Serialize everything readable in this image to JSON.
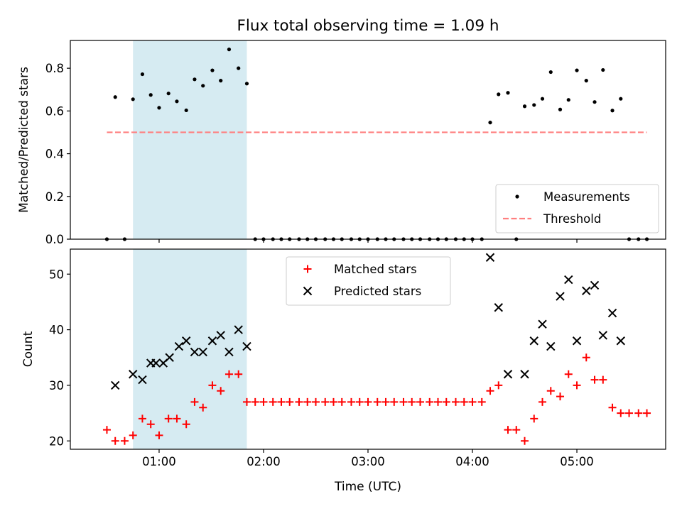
{
  "title": "Flux total observing time = 1.09 h",
  "chart_data": [
    {
      "type": "scatter",
      "panel": "top",
      "ylabel": "Matched/Predicted stars",
      "xlabel": "",
      "x_unit": "hours UTC",
      "ylim": [
        0.0,
        0.93
      ],
      "yticks": [
        0.0,
        0.2,
        0.4,
        0.6,
        0.8
      ],
      "ytick_labels": [
        "0.0",
        "0.2",
        "0.4",
        "0.6",
        "0.8"
      ],
      "shaded_interval": [
        0.75,
        1.84
      ],
      "shaded_color": "#add8e6",
      "legend_position": "lower-right",
      "series": [
        {
          "name": "Measurements",
          "marker": "dot",
          "color": "#000000",
          "points": [
            [
              0.5,
              0.0
            ],
            [
              0.58,
              0.665
            ],
            [
              0.67,
              0.0
            ],
            [
              0.75,
              0.655
            ],
            [
              0.84,
              0.772
            ],
            [
              0.92,
              0.675
            ],
            [
              1.0,
              0.615
            ],
            [
              1.09,
              0.682
            ],
            [
              1.17,
              0.645
            ],
            [
              1.26,
              0.603
            ],
            [
              1.34,
              0.748
            ],
            [
              1.42,
              0.718
            ],
            [
              1.51,
              0.79
            ],
            [
              1.59,
              0.742
            ],
            [
              1.67,
              0.888
            ],
            [
              1.76,
              0.8
            ],
            [
              1.84,
              0.728
            ],
            [
              1.92,
              0.0
            ],
            [
              2.0,
              0.0
            ],
            [
              2.09,
              0.0
            ],
            [
              2.17,
              0.0
            ],
            [
              2.25,
              0.0
            ],
            [
              2.34,
              0.0
            ],
            [
              2.42,
              0.0
            ],
            [
              2.5,
              0.0
            ],
            [
              2.59,
              0.0
            ],
            [
              2.67,
              0.0
            ],
            [
              2.75,
              0.0
            ],
            [
              2.84,
              0.0
            ],
            [
              2.92,
              0.0
            ],
            [
              3.0,
              0.0
            ],
            [
              3.09,
              0.0
            ],
            [
              3.17,
              0.0
            ],
            [
              3.25,
              0.0
            ],
            [
              3.34,
              0.0
            ],
            [
              3.42,
              0.0
            ],
            [
              3.5,
              0.0
            ],
            [
              3.59,
              0.0
            ],
            [
              3.67,
              0.0
            ],
            [
              3.75,
              0.0
            ],
            [
              3.84,
              0.0
            ],
            [
              3.92,
              0.0
            ],
            [
              4.0,
              0.0
            ],
            [
              4.09,
              0.0
            ],
            [
              4.17,
              0.546
            ],
            [
              4.25,
              0.678
            ],
            [
              4.34,
              0.685
            ],
            [
              4.42,
              0.0
            ],
            [
              4.5,
              0.622
            ],
            [
              4.59,
              0.628
            ],
            [
              4.67,
              0.657
            ],
            [
              4.75,
              0.782
            ],
            [
              4.84,
              0.607
            ],
            [
              4.92,
              0.652
            ],
            [
              5.0,
              0.79
            ],
            [
              5.09,
              0.742
            ],
            [
              5.17,
              0.642
            ],
            [
              5.25,
              0.792
            ],
            [
              5.34,
              0.602
            ],
            [
              5.42,
              0.657
            ],
            [
              5.5,
              0.0
            ],
            [
              5.59,
              0.0
            ],
            [
              5.67,
              0.0
            ]
          ]
        },
        {
          "name": "Threshold",
          "marker": "dashed-line",
          "color": "#ff7f7f",
          "points": [
            [
              0.5,
              0.5
            ],
            [
              5.67,
              0.5
            ]
          ]
        }
      ]
    },
    {
      "type": "scatter",
      "panel": "bottom",
      "ylabel": "Count",
      "xlabel": "Time (UTC)",
      "x_unit": "hours UTC",
      "xlim": [
        0.15,
        5.85
      ],
      "xticks": [
        1,
        2,
        3,
        4,
        5
      ],
      "xtick_labels": [
        "01:00",
        "02:00",
        "03:00",
        "04:00",
        "05:00"
      ],
      "ylim": [
        18.5,
        54.5
      ],
      "yticks": [
        20,
        30,
        40,
        50
      ],
      "ytick_labels": [
        "20",
        "30",
        "40",
        "50"
      ],
      "shaded_interval": [
        0.75,
        1.84
      ],
      "shaded_color": "#add8e6",
      "legend_position": "upper-center",
      "series": [
        {
          "name": "Matched stars",
          "marker": "plus",
          "color": "#ff0000",
          "points": [
            [
              0.5,
              22
            ],
            [
              0.58,
              20
            ],
            [
              0.67,
              20
            ],
            [
              0.75,
              21
            ],
            [
              0.84,
              24
            ],
            [
              0.92,
              23
            ],
            [
              1.0,
              21
            ],
            [
              1.09,
              24
            ],
            [
              1.17,
              24
            ],
            [
              1.26,
              23
            ],
            [
              1.34,
              27
            ],
            [
              1.42,
              26
            ],
            [
              1.51,
              30
            ],
            [
              1.59,
              29
            ],
            [
              1.67,
              32
            ],
            [
              1.76,
              32
            ],
            [
              1.84,
              27
            ],
            [
              1.92,
              27
            ],
            [
              2.0,
              27
            ],
            [
              2.09,
              27
            ],
            [
              2.17,
              27
            ],
            [
              2.25,
              27
            ],
            [
              2.34,
              27
            ],
            [
              2.42,
              27
            ],
            [
              2.5,
              27
            ],
            [
              2.59,
              27
            ],
            [
              2.67,
              27
            ],
            [
              2.75,
              27
            ],
            [
              2.84,
              27
            ],
            [
              2.92,
              27
            ],
            [
              3.0,
              27
            ],
            [
              3.09,
              27
            ],
            [
              3.17,
              27
            ],
            [
              3.25,
              27
            ],
            [
              3.34,
              27
            ],
            [
              3.42,
              27
            ],
            [
              3.5,
              27
            ],
            [
              3.59,
              27
            ],
            [
              3.67,
              27
            ],
            [
              3.75,
              27
            ],
            [
              3.84,
              27
            ],
            [
              3.92,
              27
            ],
            [
              4.0,
              27
            ],
            [
              4.09,
              27
            ],
            [
              4.17,
              29
            ],
            [
              4.25,
              30
            ],
            [
              4.34,
              22
            ],
            [
              4.42,
              22
            ],
            [
              4.5,
              20
            ],
            [
              4.59,
              24
            ],
            [
              4.67,
              27
            ],
            [
              4.75,
              29
            ],
            [
              4.84,
              28
            ],
            [
              4.92,
              32
            ],
            [
              5.0,
              30
            ],
            [
              5.09,
              35
            ],
            [
              5.17,
              31
            ],
            [
              5.25,
              31
            ],
            [
              5.34,
              26
            ],
            [
              5.42,
              25
            ],
            [
              5.5,
              25
            ],
            [
              5.59,
              25
            ],
            [
              5.67,
              25
            ]
          ]
        },
        {
          "name": "Predicted stars",
          "marker": "x",
          "color": "#000000",
          "points": [
            [
              0.58,
              30
            ],
            [
              0.75,
              32
            ],
            [
              0.84,
              31
            ],
            [
              0.92,
              34
            ],
            [
              0.97,
              34
            ],
            [
              1.04,
              34
            ],
            [
              1.1,
              35
            ],
            [
              1.19,
              37
            ],
            [
              1.26,
              38
            ],
            [
              1.34,
              36
            ],
            [
              1.42,
              36
            ],
            [
              1.51,
              38
            ],
            [
              1.59,
              39
            ],
            [
              1.67,
              36
            ],
            [
              1.76,
              40
            ],
            [
              1.84,
              37
            ],
            [
              4.17,
              53
            ],
            [
              4.25,
              44
            ],
            [
              4.34,
              32
            ],
            [
              4.5,
              32
            ],
            [
              4.59,
              38
            ],
            [
              4.67,
              41
            ],
            [
              4.75,
              37
            ],
            [
              4.84,
              46
            ],
            [
              4.92,
              49
            ],
            [
              5.0,
              38
            ],
            [
              5.09,
              47
            ],
            [
              5.17,
              48
            ],
            [
              5.25,
              39
            ],
            [
              5.34,
              43
            ],
            [
              5.42,
              38
            ]
          ]
        }
      ]
    }
  ]
}
